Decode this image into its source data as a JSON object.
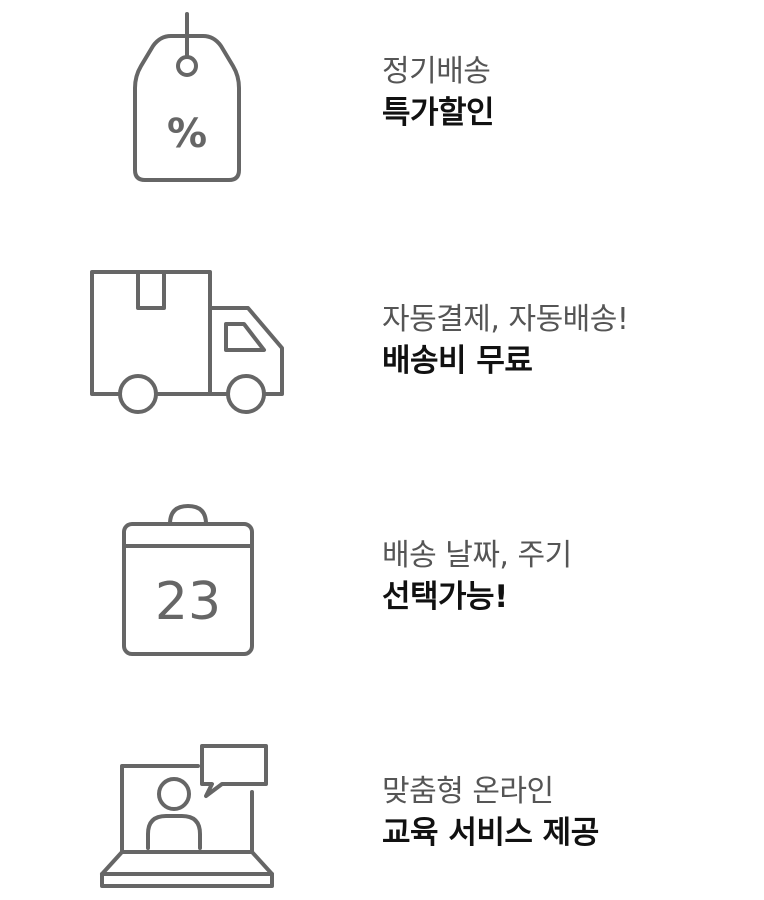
{
  "benefits": [
    {
      "icon": "price-tag-icon",
      "line1": "정기배송",
      "line2": "특가할인"
    },
    {
      "icon": "delivery-truck-icon",
      "line1": "자동결제, 자동배송!",
      "line2": "배송비 무료"
    },
    {
      "icon": "calendar-icon",
      "line1": "배송 날짜, 주기",
      "line2": "선택가능!",
      "calendar_day": "23"
    },
    {
      "icon": "online-education-icon",
      "line1": "맞춤형 온라인",
      "line2": "교육 서비스 제공"
    }
  ],
  "colors": {
    "icon_stroke": "#666666",
    "subtitle_text": "#555555",
    "title_text": "#111111",
    "background": "#ffffff"
  }
}
